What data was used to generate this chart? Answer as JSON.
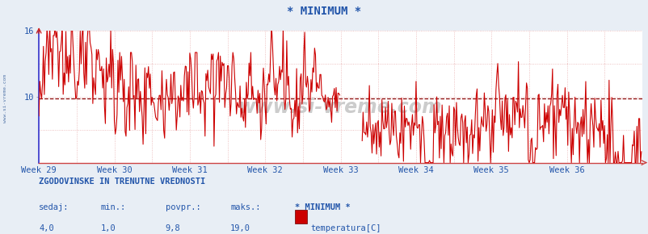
{
  "title": "* MINIMUM *",
  "title_color": "#2255aa",
  "bg_color": "#e8eef5",
  "plot_bg_color": "#ffffff",
  "grid_color_v": "#e8b0b0",
  "grid_color_h": "#e8b0b0",
  "avg_line_color": "#880000",
  "avg_line_value": 9.8,
  "line_color": "#cc0000",
  "y_min": 4.0,
  "y_max": 16.0,
  "y_tick_positions": [
    10,
    16
  ],
  "y_tick_labels": [
    "10",
    "16"
  ],
  "x_tick_labels": [
    "Week 29",
    "Week 30",
    "Week 31",
    "Week 32",
    "Week 33",
    "Week 34",
    "Week 35",
    "Week 36"
  ],
  "left_spine_color": "#3333cc",
  "bottom_spine_color": "#cc4444",
  "watermark": "www.si-vreme.com",
  "watermark_color": "#cccccc",
  "sidebar_text": "www.si-vreme.com",
  "sidebar_color": "#5577aa",
  "footer_line1": "ZGODOVINSKE IN TRENUTNE VREDNOSTI",
  "footer_labels": [
    "sedaj:",
    "min.:",
    "povpr.:",
    "maks.:",
    "* MINIMUM *"
  ],
  "footer_values": [
    "4,0",
    "1,0",
    "9,8",
    "19,0"
  ],
  "footer_legend_label": "temperatura[C]",
  "footer_legend_color": "#cc0000",
  "footer_text_color": "#2255aa",
  "n_weeks": 8,
  "points_per_week": 84
}
